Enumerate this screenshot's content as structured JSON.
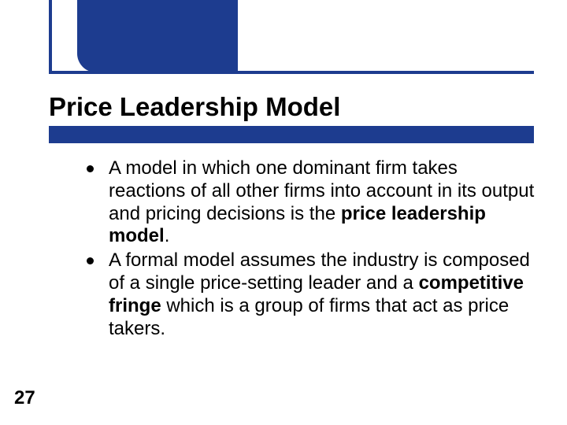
{
  "slide": {
    "title": "Price Leadership Model",
    "page_number": "27",
    "bullets": [
      {
        "pre": "A model in which one dominant firm takes reactions of all other firms into account in its output and pricing decisions is the ",
        "bold": "price leadership model",
        "post": "."
      },
      {
        "pre": "A formal model assumes the industry is composed of a single price-setting leader and a ",
        "bold": "competitive fringe",
        "post": " which is a group of firms that act as price takers."
      }
    ]
  },
  "colors": {
    "accent": "#1d3c8f",
    "text": "#000000",
    "background": "#ffffff"
  }
}
